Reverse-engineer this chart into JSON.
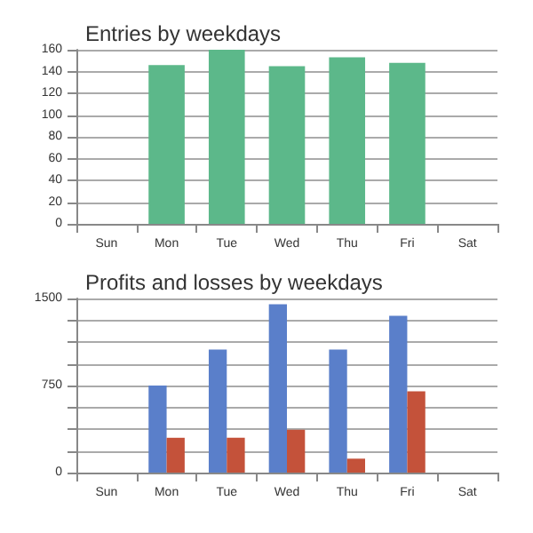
{
  "chart_data": [
    {
      "type": "bar",
      "title": "Entries by weekdays",
      "categories": [
        "Sun",
        "Mon",
        "Tue",
        "Wed",
        "Thu",
        "Fri",
        "Sat"
      ],
      "series": [
        {
          "color": "#5cb88a",
          "values": [
            null,
            146,
            160,
            145,
            153,
            148,
            null
          ]
        }
      ],
      "ylim": [
        0,
        160
      ],
      "yticks": [
        0,
        20,
        40,
        60,
        80,
        100,
        120,
        140,
        160
      ],
      "grid": "y"
    },
    {
      "type": "bar",
      "title": "Profits and losses by weekdays",
      "categories": [
        "Sun",
        "Mon",
        "Tue",
        "Wed",
        "Thu",
        "Fri",
        "Sat"
      ],
      "series": [
        {
          "color": "#5a7fca",
          "values": [
            null,
            750,
            1060,
            1450,
            1060,
            1350,
            null
          ]
        },
        {
          "color": "#c4523a",
          "values": [
            null,
            300,
            300,
            370,
            120,
            700,
            null
          ]
        }
      ],
      "ylim": [
        0,
        1500
      ],
      "yticks": [
        0,
        {
          "value": 187.5,
          "label": null
        },
        {
          "value": 375,
          "label": null
        },
        {
          "value": 562.5,
          "label": null
        },
        750,
        {
          "value": 937.5,
          "label": null
        },
        {
          "value": 1125,
          "label": null
        },
        {
          "value": 1312.5,
          "label": null
        },
        1500
      ],
      "grid": "y"
    }
  ]
}
